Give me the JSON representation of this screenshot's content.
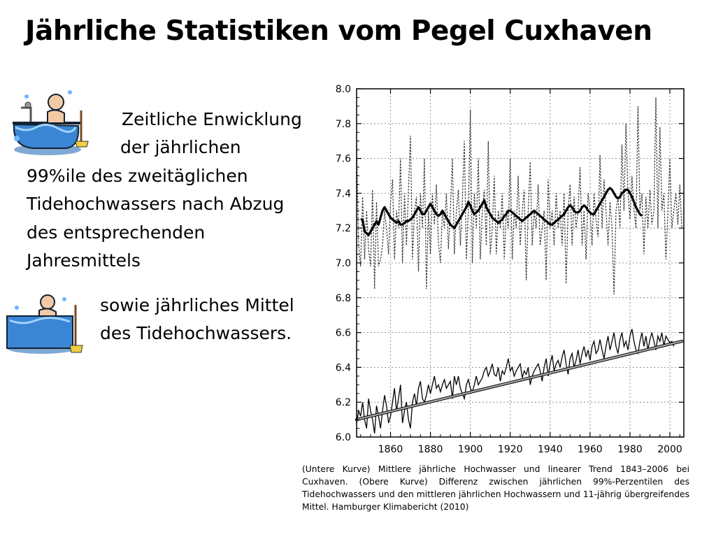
{
  "title": "Jährliche Statistiken vom Pegel Cuxhaven",
  "bullet1": {
    "line1": "Zeitliche Enwicklung",
    "line2": "der jährlichen",
    "line3": "99%ile des zweitäglichen",
    "line4": "Tidehochwassers nach Abzug",
    "line5": "des entsprechenden",
    "line6": "Jahresmittels"
  },
  "bullet2": {
    "line1": "sowie jährliches Mittel",
    "line2": "des Tidehochwassers."
  },
  "icons": {
    "clip1": "bathtub-cartoon-icon",
    "clip2": "bathtub-cartoon-icon"
  },
  "caption": "(Untere Kurve) Mittlere jährliche Hochwasser und linearer Trend 1843–2006 bei Cuxhaven. (Obere Kurve) Differenz zwischen jährlichen 99%-Perzentilen des Tidehochwassers und den mittleren jährlichen Hochwassern  und 11-jährig übergreifendes Mittel. Hamburger Klimabericht (2010)",
  "chart_data": {
    "type": "line",
    "xlim": [
      1843,
      2007
    ],
    "ylim": [
      6.0,
      8.0
    ],
    "x_ticks": [
      "1860",
      "1880",
      "1900",
      "1920",
      "1940",
      "1960",
      "1980",
      "2000"
    ],
    "y_ticks": [
      "6.0",
      "6.2",
      "6.4",
      "6.6",
      "6.8",
      "7.0",
      "7.2",
      "7.4",
      "7.6",
      "7.8",
      "8.0"
    ],
    "grid": true,
    "start_year": 1843,
    "series": [
      {
        "style": "dashed",
        "values": [
          7.68,
          7.1,
          6.98,
          7.38,
          7.02,
          7.3,
          7.08,
          6.98,
          7.42,
          6.85,
          7.35,
          6.98,
          7.02,
          7.1,
          7.3,
          7.2,
          7.05,
          7.35,
          7.48,
          7.02,
          7.3,
          7.2,
          7.6,
          7.0,
          7.4,
          7.1,
          7.42,
          7.73,
          7.02,
          7.3,
          7.38,
          6.95,
          7.4,
          7.2,
          7.6,
          6.85,
          7.3,
          7.05,
          7.4,
          7.22,
          7.45,
          7.12,
          7.0,
          7.3,
          7.2,
          7.4,
          7.08,
          7.3,
          7.6,
          7.05,
          7.3,
          7.42,
          7.1,
          7.35,
          7.7,
          7.02,
          7.3,
          7.88,
          7.0,
          7.4,
          7.2,
          7.6,
          7.02,
          7.3,
          7.42,
          7.1,
          7.7,
          7.05,
          7.2,
          7.5,
          7.05,
          7.3,
          7.2,
          7.4,
          7.02,
          7.3,
          7.2,
          7.6,
          7.02,
          7.3,
          7.2,
          7.5,
          7.1,
          7.3,
          7.42,
          6.9,
          7.3,
          7.58,
          7.1,
          7.3,
          7.2,
          7.45,
          7.1,
          7.2,
          7.3,
          6.9,
          7.48,
          7.2,
          7.3,
          7.1,
          7.4,
          7.2,
          7.3,
          7.1,
          7.4,
          6.88,
          7.3,
          7.45,
          7.1,
          7.38,
          7.2,
          7.3,
          7.55,
          7.1,
          7.3,
          7.02,
          7.4,
          7.3,
          7.1,
          7.4,
          7.25,
          7.15,
          7.62,
          7.2,
          7.48,
          7.3,
          7.1,
          7.35,
          7.2,
          6.82,
          7.3,
          7.38,
          7.2,
          7.68,
          7.3,
          7.8,
          7.4,
          7.25,
          7.5,
          7.3,
          7.2,
          7.9,
          7.3,
          7.4,
          7.05,
          7.38,
          7.2,
          7.42,
          7.22,
          7.3,
          7.95,
          7.2,
          7.78,
          7.3,
          7.4,
          7.02,
          7.3,
          7.6,
          7.2,
          7.3,
          7.4,
          7.22,
          7.45,
          7.2
        ],
        "y_ref_note": "upper dotted curve (99th percentile difference)"
      },
      {
        "style": "bold",
        "values": [
          7.25,
          7.25,
          7.18,
          7.17,
          7.16,
          7.18,
          7.2,
          7.22,
          7.24,
          7.22,
          7.26,
          7.3,
          7.32,
          7.3,
          7.28,
          7.26,
          7.25,
          7.24,
          7.23,
          7.24,
          7.22,
          7.22,
          7.23,
          7.24,
          7.24,
          7.25,
          7.26,
          7.28,
          7.3,
          7.32,
          7.3,
          7.28,
          7.28,
          7.3,
          7.32,
          7.34,
          7.32,
          7.3,
          7.28,
          7.27,
          7.28,
          7.3,
          7.28,
          7.26,
          7.24,
          7.22,
          7.21,
          7.2,
          7.22,
          7.24,
          7.26,
          7.28,
          7.3,
          7.32,
          7.35,
          7.33,
          7.3,
          7.28,
          7.29,
          7.3,
          7.32,
          7.34,
          7.36,
          7.32,
          7.3,
          7.28,
          7.26,
          7.25,
          7.24,
          7.23,
          7.24,
          7.25,
          7.27,
          7.28,
          7.3,
          7.3,
          7.29,
          7.28,
          7.27,
          7.26,
          7.25,
          7.24,
          7.25,
          7.26,
          7.27,
          7.28,
          7.29,
          7.3,
          7.29,
          7.28,
          7.27,
          7.26,
          7.25,
          7.24,
          7.23,
          7.22,
          7.22,
          7.23,
          7.24,
          7.25,
          7.26,
          7.27,
          7.28,
          7.3,
          7.32,
          7.33,
          7.32,
          7.3,
          7.29,
          7.29,
          7.3,
          7.32,
          7.33,
          7.32,
          7.3,
          7.29,
          7.28,
          7.28,
          7.3,
          7.32,
          7.34,
          7.36,
          7.38,
          7.4,
          7.42,
          7.43,
          7.42,
          7.4,
          7.38,
          7.37,
          7.38,
          7.4,
          7.41,
          7.42,
          7.42,
          7.4,
          7.38,
          7.35,
          7.32,
          7.3,
          7.28,
          7.27
        ],
        "start_year_offset": 2
      },
      {
        "style": "thin",
        "values": [
          6.08,
          6.15,
          6.12,
          6.2,
          6.1,
          6.05,
          6.22,
          6.15,
          6.1,
          6.02,
          6.18,
          6.12,
          6.05,
          6.15,
          6.24,
          6.18,
          6.08,
          6.12,
          6.2,
          6.28,
          6.15,
          6.22,
          6.3,
          6.08,
          6.15,
          6.2,
          6.1,
          6.05,
          6.2,
          6.25,
          6.18,
          6.28,
          6.32,
          6.22,
          6.2,
          6.24,
          6.3,
          6.25,
          6.3,
          6.35,
          6.28,
          6.3,
          6.26,
          6.3,
          6.33,
          6.28,
          6.3,
          6.32,
          6.22,
          6.35,
          6.3,
          6.35,
          6.28,
          6.25,
          6.22,
          6.3,
          6.33,
          6.28,
          6.26,
          6.3,
          6.35,
          6.3,
          6.32,
          6.34,
          6.38,
          6.4,
          6.35,
          6.38,
          6.42,
          6.36,
          6.35,
          6.4,
          6.32,
          6.38,
          6.36,
          6.4,
          6.45,
          6.38,
          6.4,
          6.35,
          6.38,
          6.4,
          6.42,
          6.34,
          6.38,
          6.36,
          6.4,
          6.3,
          6.35,
          6.38,
          6.4,
          6.42,
          6.38,
          6.32,
          6.4,
          6.45,
          6.35,
          6.42,
          6.47,
          6.38,
          6.42,
          6.44,
          6.4,
          6.46,
          6.5,
          6.42,
          6.36,
          6.45,
          6.48,
          6.4,
          6.44,
          6.5,
          6.42,
          6.48,
          6.52,
          6.46,
          6.5,
          6.44,
          6.52,
          6.55,
          6.48,
          6.5,
          6.56,
          6.5,
          6.45,
          6.52,
          6.58,
          6.5,
          6.55,
          6.6,
          6.52,
          6.48,
          6.56,
          6.6,
          6.52,
          6.55,
          6.5,
          6.58,
          6.62,
          6.55,
          6.5,
          6.48,
          6.55,
          6.6,
          6.52,
          6.58,
          6.5,
          6.56,
          6.6,
          6.55,
          6.5,
          6.58,
          6.55,
          6.6,
          6.52,
          6.58,
          6.56,
          6.54,
          6.55,
          6.52
        ],
        "y_ref_note": "lower curve (mean annual high water)"
      },
      {
        "style": "trend",
        "x": [
          1843,
          2006
        ],
        "values": [
          6.1,
          6.55
        ]
      }
    ]
  }
}
